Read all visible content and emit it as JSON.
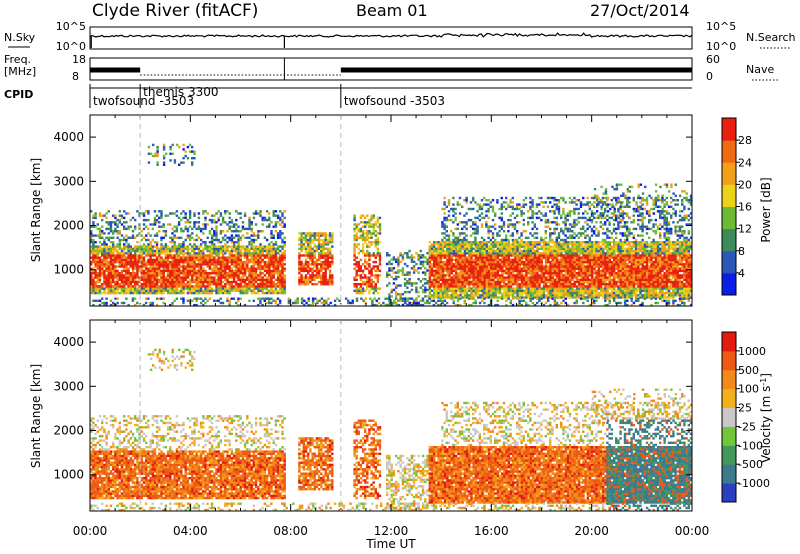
{
  "header": {
    "title": "Clyde River (fitACF)",
    "beam": "Beam 01",
    "date": "27/Oct/2014"
  },
  "noise_panel": {
    "left_label": "N.Sky",
    "right_label": "N.Search",
    "left_ticks": [
      "10^5",
      "10^0"
    ],
    "right_ticks": [
      "10^5",
      "10^0"
    ]
  },
  "freq_panel": {
    "left_label_1": "Freq.",
    "left_label_2": "[MHz]",
    "right_label": "Nave",
    "left_ticks": [
      "18",
      "8"
    ],
    "right_ticks": [
      "60",
      "0"
    ]
  },
  "cpid": {
    "label": "CPID",
    "entries": [
      {
        "name": "twofsound -3503",
        "start_hour": 0.0
      },
      {
        "name": "themis 3300",
        "start_hour": 2.0
      },
      {
        "name": "twofsound -3503",
        "start_hour": 10.0
      }
    ]
  },
  "chart_data": [
    {
      "type": "heatmap",
      "title": "Power",
      "ylabel": "Slant Range [km]",
      "xlim": [
        0,
        24
      ],
      "ylim": [
        180,
        4500
      ],
      "yticks": [
        1000,
        2000,
        3000,
        4000
      ],
      "colorbar": {
        "label": "Power [dB]",
        "ticks": [
          "4",
          "8",
          "12",
          "16",
          "20",
          "24",
          "28"
        ],
        "colors": [
          "#0a1ee8",
          "#2b58b8",
          "#3d8a5a",
          "#6dbb35",
          "#ecd21a",
          "#f2a01a",
          "#f06a12",
          "#e8200f"
        ]
      }
    },
    {
      "type": "heatmap",
      "title": "Velocity",
      "ylabel": "Slant Range [km]",
      "xlabel": "Time UT",
      "xlim": [
        0,
        24
      ],
      "ylim": [
        180,
        4500
      ],
      "yticks": [
        1000,
        2000,
        3000,
        4000
      ],
      "xticks": [
        "00:00",
        "04:00",
        "08:00",
        "12:00",
        "16:00",
        "20:00",
        "00:00"
      ],
      "colorbar": {
        "label": "Velocity [m s-1]",
        "ticks": [
          "1000",
          "500",
          "100",
          "25",
          "-25",
          "-100",
          "-500",
          "-1000"
        ],
        "colors": [
          "#2a40c0",
          "#3c7a8e",
          "#42995a",
          "#72c63a",
          "#c8c8c8",
          "#f4b01c",
          "#f28a18",
          "#ee5a14",
          "#e21b0e"
        ]
      }
    }
  ]
}
